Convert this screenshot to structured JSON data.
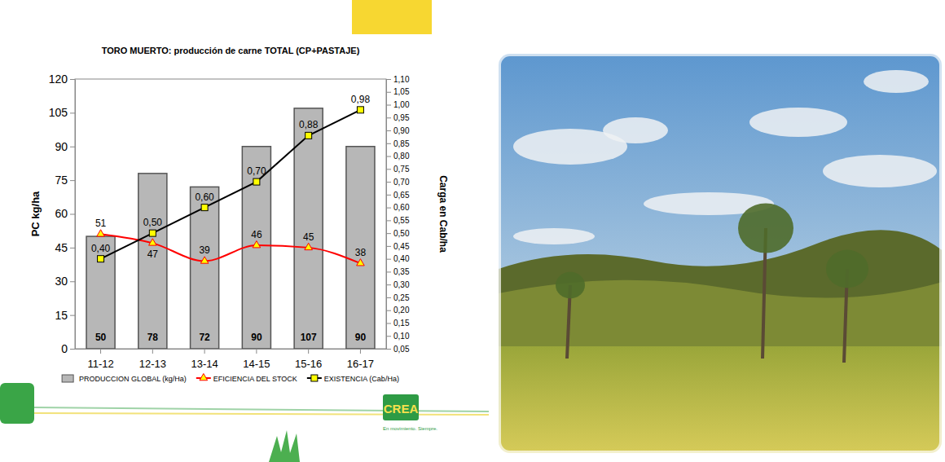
{
  "chart_data": {
    "type": "bar",
    "title": "TORO MUERTO: producción de carne TOTAL (CP+PASTAJE)",
    "categories": [
      "11-12",
      "12-13",
      "13-14",
      "14-15",
      "15-16",
      "16-17"
    ],
    "y_label": "PC kg/ha",
    "y2_label": "Carga en Cab/ha",
    "ylim": [
      0,
      120
    ],
    "yticks": [
      0,
      15,
      30,
      45,
      60,
      75,
      90,
      105,
      120
    ],
    "y2lim": [
      0.05,
      1.1
    ],
    "y2ticks": [
      {
        "value": 0.05,
        "label": "0,05"
      },
      {
        "value": 0.1,
        "label": "0,10"
      },
      {
        "value": 0.15,
        "label": "0,15"
      },
      {
        "value": 0.2,
        "label": "0,20"
      },
      {
        "value": 0.25,
        "label": "0,25"
      },
      {
        "value": 0.3,
        "label": "0,30"
      },
      {
        "value": 0.35,
        "label": "0,35"
      },
      {
        "value": 0.4,
        "label": "0,40"
      },
      {
        "value": 0.45,
        "label": "0,45"
      },
      {
        "value": 0.5,
        "label": "0,50"
      },
      {
        "value": 0.55,
        "label": "0,55"
      },
      {
        "value": 0.6,
        "label": "0,60"
      },
      {
        "value": 0.65,
        "label": "0,65"
      },
      {
        "value": 0.7,
        "label": "0,70"
      },
      {
        "value": 0.75,
        "label": "0,75"
      },
      {
        "value": 0.8,
        "label": "0,80"
      },
      {
        "value": 0.85,
        "label": "0,85"
      },
      {
        "value": 0.9,
        "label": "0,90"
      },
      {
        "value": 0.95,
        "label": "0,95"
      },
      {
        "value": 1.0,
        "label": "1,00"
      },
      {
        "value": 1.05,
        "label": "1,05"
      },
      {
        "value": 1.1,
        "label": "1,10"
      }
    ],
    "grid": false,
    "legend": "bottom",
    "data_labels": true,
    "series": [
      {
        "name": "PRODUCCION GLOBAL (kg/Ha)",
        "type": "bar",
        "color": "#b7b7b7",
        "values": [
          50,
          78,
          72,
          90,
          107,
          90
        ]
      },
      {
        "name": "EFICIENCIA DEL STOCK",
        "type": "line",
        "color": "#ff0000",
        "marker": "triangle",
        "line_style": "smooth",
        "values": [
          51,
          47,
          39,
          46,
          45,
          38
        ]
      },
      {
        "name": "EXISTENCIA (Cab/Ha)",
        "type": "line",
        "color": "#000000",
        "marker": "square",
        "line_style": "solid",
        "axis": "y2",
        "values": [
          0.4,
          0.5,
          0.6,
          0.7,
          0.88,
          0.98
        ],
        "value_labels": [
          "0,40",
          "0,50",
          "0,60",
          "0,70",
          "0,88",
          "0,98"
        ]
      }
    ]
  },
  "logo": {
    "text": "CREA",
    "tagline": "En movimiento. Siempre."
  }
}
